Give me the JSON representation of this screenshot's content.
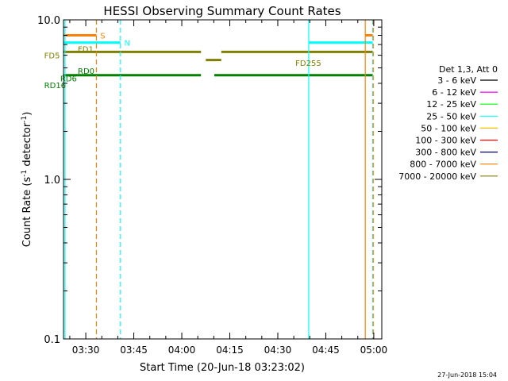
{
  "colors": {
    "orange": "#ff8000",
    "cyan": "#00ffff",
    "olive": "#808000",
    "green": "#008000",
    "black": "#000000",
    "magenta": "#ff00ff",
    "lime": "#00ff00",
    "yellow": "#ffc000",
    "red": "#ff0000",
    "navy": "#000080"
  },
  "chart_data": {
    "type": "line",
    "title": "HESSI Observing Summary Count Rates",
    "xlabel": "Start Time (20-Jun-18 03:23:02)",
    "ylabel_main": "Count Rate (s",
    "ylabel_sup1": "-1",
    "ylabel_mid": " detector",
    "ylabel_sup2": "-1",
    "ylabel_end": ")",
    "y_scale": "log",
    "ylim": [
      0.1,
      10.0
    ],
    "xlim": [
      "03:23:02",
      "05:02:30"
    ],
    "x_ticks": [
      {
        "t": "03:30",
        "label": "03:30"
      },
      {
        "t": "03:45",
        "label": "03:45"
      },
      {
        "t": "04:00",
        "label": "04:00"
      },
      {
        "t": "04:15",
        "label": "04:15"
      },
      {
        "t": "04:30",
        "label": "04:30"
      },
      {
        "t": "04:45",
        "label": "04:45"
      },
      {
        "t": "05:00",
        "label": "05:00"
      }
    ],
    "y_ticks": [
      {
        "v": 10.0,
        "label": "10.0"
      },
      {
        "v": 1.0,
        "label": "1.0"
      },
      {
        "v": 0.1,
        "label": "0.1"
      }
    ],
    "legend_header": "Det 1,3, Att 0",
    "legend": [
      {
        "label": "3 - 6 keV",
        "color": "#000000"
      },
      {
        "label": "6 - 12 keV",
        "color": "#ff00ff"
      },
      {
        "label": "12 - 25 keV",
        "color": "#00ff00"
      },
      {
        "label": "25 - 50 keV",
        "color": "#00ffff"
      },
      {
        "label": "50 - 100 keV",
        "color": "#ffc000"
      },
      {
        "label": "100 - 300 keV",
        "color": "#ff0000"
      },
      {
        "label": "300 - 800 keV",
        "color": "#000080"
      },
      {
        "label": "800 - 7000 keV",
        "color": "#ff8000"
      },
      {
        "label": "7000 - 20000 keV",
        "color": "#808000"
      }
    ],
    "flag_bars": [
      {
        "name": "S",
        "color": "#ff8000",
        "segments": [
          [
            "03:23:02",
            "03:33:20"
          ],
          [
            "04:57:20",
            "04:59:40"
          ]
        ],
        "y": 8.0
      },
      {
        "name": "N",
        "color": "#00ffff",
        "segments": [
          [
            "03:23:02",
            "03:40:50"
          ],
          [
            "04:39:40",
            "04:59:40"
          ]
        ],
        "y": 7.2
      },
      {
        "name": "FD1",
        "color": "#808000",
        "segments": [
          [
            "03:23:02",
            "04:06:00"
          ],
          [
            "04:12:20",
            "04:59:40"
          ]
        ],
        "y": 6.3
      },
      {
        "name": "FD255",
        "color": "#808000",
        "segments": [
          [
            "04:07:30",
            "04:12:20"
          ]
        ],
        "y": 5.6
      },
      {
        "name": "RD0",
        "color": "#008000",
        "segments": [
          [
            "03:23:02",
            "04:06:00"
          ],
          [
            "04:10:10",
            "04:59:40"
          ]
        ],
        "y": 4.5
      }
    ],
    "flag_labels": [
      {
        "text": "S",
        "color": "#ff8000",
        "t": "03:34:30",
        "v": 8.0
      },
      {
        "text": "N",
        "color": "#00ffff",
        "t": "03:42:00",
        "v": 7.2
      },
      {
        "text": "FD1",
        "color": "#808000",
        "t": "03:27:30",
        "v": 6.6
      },
      {
        "text": "FD5",
        "color": "#808000",
        "t": "03:17:00",
        "v": 6.0
      },
      {
        "text": "FD255",
        "color": "#808000",
        "t": "04:35:30",
        "v": 5.4
      },
      {
        "text": "RD0",
        "color": "#008000",
        "t": "03:27:30",
        "v": 4.8
      },
      {
        "text": "RD6",
        "color": "#008000",
        "t": "03:22:00",
        "v": 4.3
      },
      {
        "text": "RD16",
        "color": "#008000",
        "t": "03:17:00",
        "v": 3.9
      }
    ],
    "vertical_lines": [
      {
        "t": "03:23:30",
        "color": "#00ffff",
        "dashed": false
      },
      {
        "t": "03:33:20",
        "color": "#ff8000",
        "dashed": true
      },
      {
        "t": "03:40:50",
        "color": "#00ffff",
        "dashed": true
      },
      {
        "t": "04:39:40",
        "color": "#00ffff",
        "dashed": false
      },
      {
        "t": "04:57:20",
        "color": "#ff8000",
        "dashed": false
      },
      {
        "t": "04:59:40",
        "color": "#00ffff",
        "dashed": true
      },
      {
        "t": "04:59:50",
        "color": "#ff8000",
        "dashed": true
      }
    ],
    "grid": false,
    "legend_position": "right"
  },
  "footer_date": "27-Jun-2018 15:04"
}
